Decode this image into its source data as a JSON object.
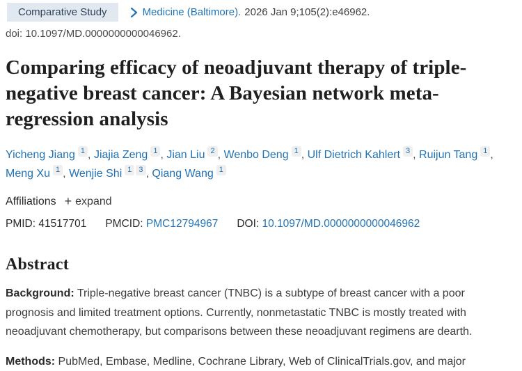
{
  "colors": {
    "link_blue": "#2173b5",
    "badge_bg": "#e2e8f0",
    "badge_text": "#2e4257",
    "text_dark": "#3c3c3c",
    "title_color": "#1f1f1f"
  },
  "header": {
    "badge": "Comparative Study",
    "journal": "Medicine (Baltimore).",
    "citation": "2026 Jan 9;105(2):e46962.",
    "doi_line": "doi: 10.1097/MD.0000000000046962."
  },
  "title": "Comparing efficacy of neoadjuvant therapy of triple-negative breast cancer: A Bayesian network meta-regression analysis",
  "authors": [
    {
      "name": "Yicheng Jiang",
      "sups": [
        "1"
      ]
    },
    {
      "name": "Jiajia Zeng",
      "sups": [
        "1"
      ]
    },
    {
      "name": "Jian Liu",
      "sups": [
        "2"
      ]
    },
    {
      "name": "Wenbo Deng",
      "sups": [
        "1"
      ]
    },
    {
      "name": "Ulf Dietrich Kahlert",
      "sups": [
        "3"
      ]
    },
    {
      "name": "Ruijun Tang",
      "sups": [
        "1"
      ]
    },
    {
      "name": "Meng Xu",
      "sups": [
        "1"
      ]
    },
    {
      "name": "Wenjie Shi",
      "sups": [
        "1",
        "3"
      ]
    },
    {
      "name": "Qiang Wang",
      "sups": [
        "1"
      ]
    }
  ],
  "affiliations": {
    "label": "Affiliations",
    "plus_icon": "+",
    "expand_label": "expand"
  },
  "identifiers": {
    "pmid_label": "PMID:",
    "pmid": "41517701",
    "pmcid_label": "PMCID:",
    "pmcid": "PMC12794967",
    "doi_label": "DOI:",
    "doi": "10.1097/MD.0000000000046962"
  },
  "abstract": {
    "heading": "Abstract",
    "sections": [
      {
        "label": "Background:",
        "text": "Triple-negative breast cancer (TNBC) is a subtype of breast cancer with a poor prognosis and limited treatment options. Currently, nonmetastatic TNBC is mostly treated with neoadjuvant chemotherapy, but comparisons between these neoadjuvant regimens are dearth."
      },
      {
        "label": "Methods:",
        "text": "PubMed, Embase, Medline, Cochrane Library, Web of ClinicalTrials.gov, and major"
      }
    ]
  }
}
